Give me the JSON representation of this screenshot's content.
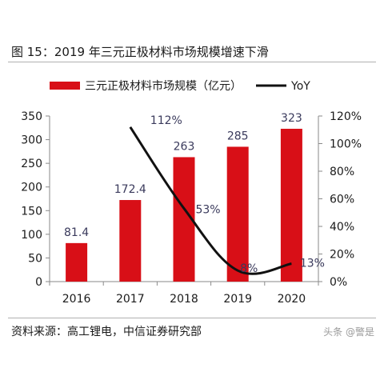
{
  "title": "图 15：2019 年三元正极材料市场规模增速下滑",
  "source": "资料来源：高工锂电，中信证券研究部",
  "watermark": "头条 @警是",
  "colors": {
    "bar": "#d80f17",
    "line": "#111111",
    "data_label_line": "#3a3a5c"
  },
  "chart_data": {
    "type": "bar",
    "categories": [
      "2016",
      "2017",
      "2018",
      "2019",
      "2020"
    ],
    "series": [
      {
        "name": "三元正极材料市场规模（亿元）",
        "type": "bar",
        "axis": "left",
        "values": [
          81.4,
          172.4,
          263,
          285,
          323
        ],
        "labels": [
          "81.4",
          "172.4",
          "263",
          "285",
          "323"
        ]
      },
      {
        "name": "YoY",
        "type": "line",
        "axis": "right",
        "values": [
          null,
          112,
          53,
          8,
          13
        ],
        "labels": [
          "",
          "112%",
          "53%",
          "8%",
          "13%"
        ]
      }
    ],
    "y_left": {
      "min": 0,
      "max": 350,
      "ticks": [
        "0",
        "50",
        "100",
        "150",
        "200",
        "250",
        "300",
        "350"
      ]
    },
    "y_right": {
      "min": 0,
      "max": 120,
      "ticks": [
        "0%",
        "20%",
        "40%",
        "60%",
        "80%",
        "100%",
        "120%"
      ]
    },
    "legend_position": "top",
    "grid": false
  }
}
